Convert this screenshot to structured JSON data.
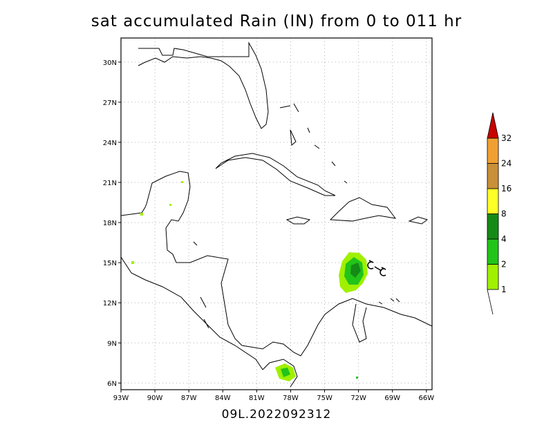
{
  "map": {
    "title": "sat accumulated Rain (IN) from 0 to 011 hr",
    "footer": "09L.2022092312",
    "lat_labels": [
      "30N",
      "27N",
      "24N",
      "21N",
      "18N",
      "15N",
      "12N",
      "9N",
      "6N"
    ],
    "lat_values": [
      30,
      27,
      24,
      21,
      18,
      15,
      12,
      9,
      6
    ],
    "lon_labels": [
      "93W",
      "90W",
      "87W",
      "84W",
      "81W",
      "78W",
      "75W",
      "72W",
      "69W",
      "66W"
    ],
    "lon_values": [
      -93,
      -90,
      -87,
      -84,
      -81,
      -78,
      -75,
      -72,
      -69,
      -66
    ],
    "extent": {
      "lon_min": -93,
      "lon_max": -65.5,
      "lat_min": 5.5,
      "lat_max": 31.8
    },
    "grid": true,
    "storm_id": "09L"
  },
  "legend": {
    "labels": [
      "1",
      "2",
      "4",
      "8",
      "16",
      "24",
      "32"
    ],
    "colors": [
      "#a0f000",
      "#22c41a",
      "#168a16",
      "#ffff28",
      "#c89038",
      "#f0a032",
      "#c80000"
    ]
  },
  "colors": {
    "coast": "#000000",
    "grid": "#b0b0b0",
    "rain_light": "#a0f000",
    "rain_mid": "#22c41a",
    "rain_dark": "#168a16"
  }
}
